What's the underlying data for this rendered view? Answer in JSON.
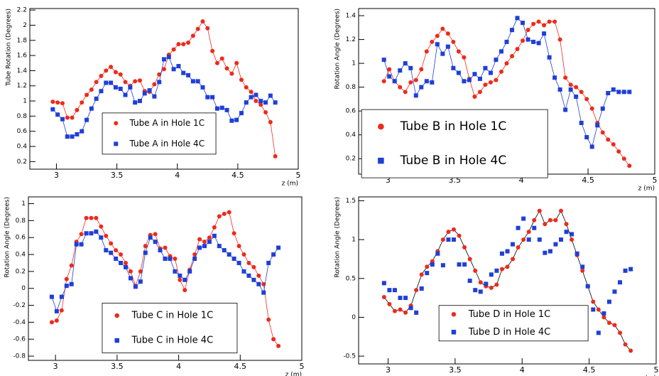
{
  "chart_data": [
    {
      "type": "line",
      "ylabel": "Tube Rotation (Degrees)",
      "xlabel": "z (m)",
      "x": [
        2.97,
        3.01,
        3.05,
        3.09,
        3.13,
        3.17,
        3.21,
        3.25,
        3.29,
        3.33,
        3.37,
        3.41,
        3.45,
        3.49,
        3.53,
        3.57,
        3.61,
        3.65,
        3.69,
        3.73,
        3.77,
        3.81,
        3.85,
        3.89,
        3.93,
        3.97,
        4.01,
        4.05,
        4.09,
        4.13,
        4.17,
        4.21,
        4.25,
        4.29,
        4.33,
        4.37,
        4.41,
        4.45,
        4.49,
        4.53,
        4.57,
        4.61,
        4.65,
        4.69,
        4.73,
        4.77,
        4.81
      ],
      "xlim": [
        2.78,
        5.0
      ],
      "xticks": [
        3,
        3.5,
        4,
        4.5,
        5
      ],
      "ylim": [
        0.1,
        2.22
      ],
      "yticks": [
        0.2,
        0.4,
        0.6,
        0.8,
        1,
        1.2,
        1.4,
        1.6,
        1.8,
        2,
        2.2
      ],
      "legend": "center",
      "series": [
        {
          "name": "Tube A in Hole 1C",
          "color": "#ee2a1b",
          "line_color": "#ee2a1b",
          "marker": "circle",
          "values": [
            0.99,
            0.98,
            0.97,
            0.78,
            0.78,
            0.88,
            0.98,
            1.08,
            1.15,
            1.25,
            1.33,
            1.4,
            1.45,
            1.38,
            1.35,
            1.25,
            1.2,
            1.26,
            1.27,
            1.13,
            1.12,
            1.22,
            1.35,
            1.42,
            1.61,
            1.68,
            1.75,
            1.75,
            1.77,
            1.86,
            1.95,
            2.05,
            1.96,
            1.66,
            1.5,
            1.56,
            1.43,
            1.36,
            1.5,
            1.28,
            1.18,
            1.12,
            1.0,
            0.95,
            0.85,
            0.72,
            0.27
          ]
        },
        {
          "name": "Tube A in Hole 4C",
          "color": "#1f3fd6",
          "line_color": "#1f3fd6",
          "marker": "square",
          "values": [
            0.89,
            0.82,
            0.76,
            0.53,
            0.53,
            0.56,
            0.6,
            0.75,
            0.9,
            1.03,
            1.13,
            1.24,
            1.24,
            1.18,
            1.16,
            1.08,
            1.18,
            0.98,
            1.0,
            1.1,
            1.14,
            1.06,
            1.25,
            1.55,
            1.58,
            1.42,
            1.46,
            1.37,
            1.34,
            1.26,
            1.26,
            1.18,
            1.05,
            1.05,
            0.9,
            0.91,
            0.88,
            0.74,
            0.75,
            0.84,
            0.98,
            1.05,
            1.08,
            1.0,
            0.98,
            1.07,
            0.98
          ]
        }
      ]
    },
    {
      "type": "line",
      "ylabel": "Rotation Angle (Degrees)",
      "xlabel": "z (m)",
      "x": [
        2.97,
        3.01,
        3.05,
        3.09,
        3.13,
        3.17,
        3.21,
        3.25,
        3.29,
        3.33,
        3.37,
        3.41,
        3.45,
        3.49,
        3.53,
        3.57,
        3.61,
        3.65,
        3.69,
        3.73,
        3.77,
        3.81,
        3.85,
        3.89,
        3.93,
        3.97,
        4.01,
        4.05,
        4.09,
        4.13,
        4.17,
        4.21,
        4.25,
        4.29,
        4.33,
        4.37,
        4.41,
        4.45,
        4.49,
        4.53,
        4.57,
        4.61,
        4.65,
        4.69,
        4.73,
        4.77,
        4.81
      ],
      "xlim": [
        2.78,
        5.0
      ],
      "xticks": [
        3,
        3.5,
        4,
        4.5,
        5
      ],
      "ylim": [
        0.07,
        1.46
      ],
      "yticks": [
        0.2,
        0.4,
        0.6,
        0.8,
        1,
        1.2,
        1.4
      ],
      "legend": "lower-left",
      "series": [
        {
          "name": "Tube B in Hole 1C",
          "color": "#ee2a1b",
          "line_color": "#ee2a1b",
          "marker": "circle",
          "values": [
            0.85,
            0.95,
            0.85,
            0.8,
            0.76,
            0.84,
            0.86,
            0.95,
            1.1,
            1.18,
            1.23,
            1.29,
            1.25,
            1.18,
            1.1,
            1.05,
            0.87,
            0.72,
            0.76,
            0.82,
            0.84,
            0.86,
            0.93,
            1.0,
            1.06,
            1.12,
            1.19,
            1.28,
            1.33,
            1.35,
            1.32,
            1.35,
            1.35,
            1.2,
            0.88,
            0.82,
            0.8,
            0.76,
            0.7,
            0.62,
            0.5,
            0.42,
            0.36,
            0.32,
            0.26,
            0.2,
            0.14
          ]
        },
        {
          "name": "Tube B in Hole 4C",
          "color": "#1f3fd6",
          "line_color": "#1f3fd6",
          "marker": "square",
          "values": [
            1.03,
            0.89,
            0.85,
            0.94,
            1.0,
            0.96,
            0.73,
            0.8,
            0.85,
            0.84,
            1.16,
            1.08,
            1.14,
            0.96,
            0.92,
            0.85,
            0.86,
            0.91,
            0.87,
            0.96,
            0.92,
            1.03,
            1.1,
            1.18,
            1.28,
            1.38,
            1.34,
            1.2,
            1.18,
            1.17,
            1.25,
            1.05,
            0.88,
            0.78,
            0.61,
            0.78,
            0.72,
            0.5,
            0.38,
            0.3,
            0.48,
            0.62,
            0.75,
            0.78,
            0.76,
            0.76,
            0.76
          ]
        }
      ]
    },
    {
      "type": "line",
      "ylabel": "Rotation Angle (Degrees)",
      "xlabel": "z (m)",
      "x": [
        2.97,
        3.01,
        3.05,
        3.09,
        3.13,
        3.17,
        3.21,
        3.25,
        3.29,
        3.33,
        3.37,
        3.41,
        3.45,
        3.49,
        3.53,
        3.57,
        3.61,
        3.65,
        3.69,
        3.73,
        3.77,
        3.81,
        3.85,
        3.89,
        3.93,
        3.97,
        4.01,
        4.05,
        4.09,
        4.13,
        4.17,
        4.21,
        4.25,
        4.29,
        4.33,
        4.37,
        4.41,
        4.45,
        4.49,
        4.53,
        4.57,
        4.61,
        4.65,
        4.69,
        4.73,
        4.77,
        4.81
      ],
      "xlim": [
        2.78,
        5.0
      ],
      "xticks": [
        3,
        3.5,
        4,
        4.5,
        5
      ],
      "ylim": [
        -0.85,
        1.08
      ],
      "yticks": [
        -0.8,
        -0.6,
        -0.4,
        -0.2,
        0,
        0.2,
        0.4,
        0.6,
        0.8,
        1
      ],
      "legend": "center",
      "series": [
        {
          "name": "Tube C in Hole 1C",
          "color": "#ee2a1b",
          "line_color": "#ee2a1b",
          "marker": "circle",
          "values": [
            -0.4,
            -0.38,
            -0.26,
            0.11,
            0.27,
            0.55,
            0.64,
            0.83,
            0.83,
            0.83,
            0.73,
            0.62,
            0.53,
            0.45,
            0.4,
            0.3,
            0.2,
            0.03,
            0.2,
            0.5,
            0.63,
            0.64,
            0.47,
            0.48,
            0.38,
            0.35,
            0.1,
            -0.02,
            0.22,
            0.4,
            0.58,
            0.55,
            0.6,
            0.72,
            0.85,
            0.88,
            0.9,
            0.65,
            0.5,
            0.4,
            0.3,
            0.25,
            0.15,
            0.05,
            -0.37,
            -0.6,
            -0.68
          ]
        },
        {
          "name": "Tube C in Hole 4C",
          "color": "#1f3fd6",
          "line_color": "#1f3fd6",
          "marker": "square",
          "values": [
            -0.1,
            -0.27,
            -0.1,
            0.03,
            0.05,
            0.52,
            0.52,
            0.65,
            0.65,
            0.67,
            0.6,
            0.45,
            0.42,
            0.35,
            0.3,
            0.25,
            0.12,
            0.02,
            0.08,
            0.42,
            0.6,
            0.55,
            0.45,
            0.35,
            0.35,
            0.2,
            0.15,
            0.1,
            0.2,
            0.35,
            0.48,
            0.5,
            0.55,
            0.62,
            0.5,
            0.45,
            0.4,
            0.35,
            0.3,
            0.2,
            0.15,
            0.1,
            0.05,
            -0.05,
            0.3,
            0.4,
            0.48
          ]
        }
      ]
    },
    {
      "type": "line",
      "ylabel": "Rotation Angle (Degrees)",
      "xlabel": "z (m)",
      "x": [
        2.97,
        3.01,
        3.05,
        3.09,
        3.13,
        3.17,
        3.21,
        3.25,
        3.29,
        3.33,
        3.37,
        3.41,
        3.45,
        3.49,
        3.53,
        3.57,
        3.61,
        3.65,
        3.69,
        3.73,
        3.77,
        3.81,
        3.85,
        3.89,
        3.93,
        3.97,
        4.01,
        4.05,
        4.09,
        4.13,
        4.17,
        4.21,
        4.25,
        4.29,
        4.33,
        4.37,
        4.41,
        4.45,
        4.49,
        4.53,
        4.57,
        4.61,
        4.65,
        4.69,
        4.73,
        4.77,
        4.81
      ],
      "xlim": [
        2.78,
        5.0
      ],
      "xticks": [
        3,
        3.5,
        4,
        4.5,
        5
      ],
      "ylim": [
        -0.6,
        1.55
      ],
      "yticks": [
        -0.5,
        0,
        0.5,
        1,
        1.5
      ],
      "legend": "center",
      "series": [
        {
          "name": "Tube D in Hole 1C",
          "color": "#ee2a1b",
          "line_color": "#000000",
          "marker": "circle",
          "values": [
            0.26,
            0.17,
            0.08,
            0.1,
            0.06,
            0.15,
            0.35,
            0.55,
            0.65,
            0.72,
            0.85,
            1.0,
            1.1,
            1.13,
            1.05,
            0.9,
            0.75,
            0.6,
            0.45,
            0.4,
            0.38,
            0.42,
            0.62,
            0.65,
            0.75,
            0.9,
            1.0,
            1.1,
            1.25,
            1.37,
            1.2,
            1.25,
            1.25,
            1.37,
            1.2,
            1.0,
            0.8,
            0.6,
            0.4,
            0.2,
            0.1,
            0.0,
            -0.07,
            -0.1,
            -0.2,
            -0.35,
            -0.43
          ]
        },
        {
          "name": "Tube D in Hole 4C",
          "color": "#1f3fd6",
          "marker": "square",
          "values": [
            0.44,
            0.35,
            0.35,
            0.25,
            0.25,
            0.12,
            0.06,
            0.37,
            0.57,
            0.68,
            0.82,
            0.67,
            1.0,
            1.0,
            0.68,
            0.68,
            0.47,
            0.35,
            0.33,
            0.43,
            0.55,
            0.6,
            0.82,
            0.85,
            0.94,
            1.15,
            1.27,
            1.0,
            1.15,
            1.0,
            0.83,
            0.85,
            0.94,
            1.0,
            1.1,
            1.07,
            0.82,
            0.65,
            0.4,
            0.1,
            -0.2,
            0.05,
            0.2,
            0.33,
            0.45,
            0.6,
            0.62
          ]
        }
      ]
    }
  ]
}
